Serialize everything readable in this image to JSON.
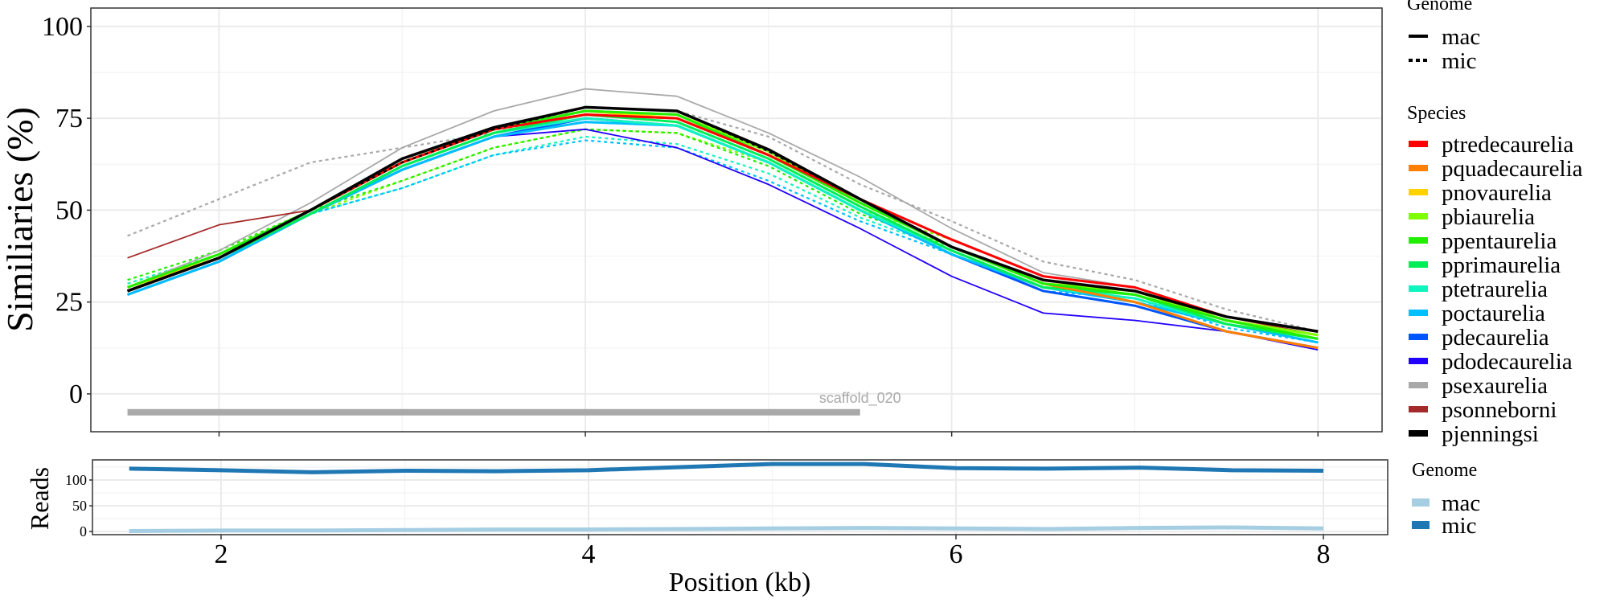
{
  "chart_data": [
    {
      "type": "line",
      "ylabel": "Similiaries (%)",
      "xlabel": "Position (kb)",
      "xlim": [
        1.3,
        8.35
      ],
      "ylim": [
        -10.3,
        105
      ],
      "grid": true,
      "x": [
        1.5,
        2,
        2.5,
        3,
        3.5,
        4,
        4.5,
        5,
        5.5,
        6,
        6.5,
        7,
        7.5,
        8
      ],
      "yticks": [
        0,
        25,
        50,
        75,
        100
      ],
      "xticks": [
        2,
        4,
        6,
        8
      ],
      "annotation": {
        "text": "scaffold_020",
        "x_start": 1.5,
        "x_end": 5.5,
        "y": -5
      },
      "legend_genome": {
        "title": "Genome",
        "entries": [
          "mac",
          "mic"
        ]
      },
      "legend_species": {
        "title": "Species",
        "position": "right"
      },
      "species": [
        {
          "name": "ptredecaurelia",
          "color": "#FF0000"
        },
        {
          "name": "pquadecaurelia",
          "color": "#FF7F00"
        },
        {
          "name": "pnovaurelia",
          "color": "#FFD200"
        },
        {
          "name": "pbiaurelia",
          "color": "#7FFF00"
        },
        {
          "name": "ppentaurelia",
          "color": "#22EE00"
        },
        {
          "name": "pprimaurelia",
          "color": "#00EE55"
        },
        {
          "name": "ptetraurelia",
          "color": "#10F5C0"
        },
        {
          "name": "poctaurelia",
          "color": "#00BFFF"
        },
        {
          "name": "pdecaurelia",
          "color": "#0055FF"
        },
        {
          "name": "pdodecaurelia",
          "color": "#2200FF"
        },
        {
          "name": "psexaurelia",
          "color": "#A9A9A9"
        },
        {
          "name": "psonneborni",
          "color": "#A52A2A"
        },
        {
          "name": "pjenningsi",
          "color": "#000000"
        }
      ],
      "series": [
        {
          "species": "psexaurelia",
          "genome": "mic",
          "values": [
            43,
            53,
            63,
            67,
            71,
            78,
            77,
            70,
            57,
            47,
            36,
            31,
            23,
            17
          ]
        },
        {
          "species": "pbiaurelia",
          "genome": "mic",
          "values": [
            30,
            38,
            49,
            58,
            67,
            72,
            71,
            63,
            50,
            42,
            32,
            29,
            21,
            16
          ]
        },
        {
          "species": "ppentaurelia",
          "genome": "mic",
          "values": [
            31,
            39,
            50,
            58,
            67,
            72,
            71,
            62,
            49,
            40,
            30,
            28,
            20,
            16
          ]
        },
        {
          "species": "ptetraurelia",
          "genome": "mic",
          "values": [
            30,
            38,
            49,
            56,
            65,
            70,
            68,
            60,
            48,
            39,
            29,
            27,
            19,
            15
          ]
        },
        {
          "species": "poctaurelia",
          "genome": "mic",
          "values": [
            29,
            37,
            49,
            56,
            65,
            69,
            67,
            58,
            47,
            38,
            28,
            26,
            18,
            14
          ]
        },
        {
          "species": "psexaurelia",
          "genome": "mac",
          "values": [
            29,
            39,
            52,
            67,
            77,
            83,
            81,
            71,
            59,
            45,
            33,
            29,
            21,
            16
          ]
        },
        {
          "species": "psonneborni",
          "genome": "mac",
          "values": [
            37,
            46,
            50,
            63,
            72,
            77,
            76,
            66,
            53,
            40,
            31,
            28,
            21,
            16
          ]
        },
        {
          "species": "pdodecaurelia",
          "genome": "mac",
          "values": [
            27,
            36,
            49,
            61,
            70,
            72,
            67,
            57,
            45,
            32,
            22,
            20,
            17,
            12
          ]
        },
        {
          "species": "pdecaurelia",
          "genome": "mac",
          "values": [
            27,
            36,
            49,
            61,
            70,
            75,
            73,
            63,
            50,
            38,
            28,
            24,
            17,
            12.5
          ]
        },
        {
          "species": "poctaurelia",
          "genome": "mac",
          "values": [
            27,
            36,
            49,
            61,
            70,
            74,
            73,
            63,
            50,
            38,
            29,
            25,
            19,
            14
          ]
        },
        {
          "species": "ptetraurelia",
          "genome": "mac",
          "values": [
            28,
            37,
            49,
            62,
            71,
            75,
            73,
            63,
            50,
            39,
            29,
            26,
            19,
            15
          ]
        },
        {
          "species": "pprimaurelia",
          "genome": "mac",
          "values": [
            28,
            37,
            49,
            62,
            71,
            76,
            74,
            64,
            51,
            39,
            29,
            27,
            19,
            15
          ]
        },
        {
          "species": "pquadecaurelia",
          "genome": "mac",
          "values": [
            28,
            37,
            50,
            63,
            72,
            76,
            75,
            65,
            52,
            40,
            30,
            25,
            17,
            12.5
          ]
        },
        {
          "species": "pnovaurelia",
          "genome": "mac",
          "values": [
            29,
            37,
            50,
            63,
            72,
            77,
            75,
            65,
            52,
            40,
            30,
            28,
            20,
            16
          ]
        },
        {
          "species": "pbiaurelia",
          "genome": "mac",
          "values": [
            29,
            38,
            50,
            63,
            72,
            77,
            76,
            66,
            52,
            40,
            30,
            28,
            20,
            16
          ]
        },
        {
          "species": "ppentaurelia",
          "genome": "mac",
          "values": [
            29,
            38,
            50,
            63,
            72,
            77,
            76,
            65,
            52,
            40,
            30,
            27,
            20,
            15
          ]
        },
        {
          "species": "ptredecaurelia",
          "genome": "mac",
          "values": [
            28,
            37,
            50,
            63,
            72,
            76,
            75,
            65,
            53,
            42,
            32,
            29,
            21,
            17
          ]
        },
        {
          "species": "pjenningsi",
          "genome": "mic",
          "values": [
            28,
            37,
            50,
            63,
            72,
            78,
            77,
            66,
            53,
            40,
            31,
            28,
            21,
            17
          ]
        },
        {
          "species": "pjenningsi",
          "genome": "mac",
          "values": [
            28,
            37,
            50,
            64,
            72.5,
            78,
            77,
            66.5,
            53,
            40,
            31,
            28,
            21,
            17
          ]
        }
      ]
    },
    {
      "type": "line",
      "ylabel": "Reads",
      "xlabel": "Position (kb)",
      "xlim": [
        1.3,
        8.35
      ],
      "ylim": [
        -6,
        139
      ],
      "yticks": [
        0,
        50,
        100
      ],
      "xticks": [
        2,
        4,
        6,
        8
      ],
      "x": [
        1.5,
        2,
        2.5,
        3,
        3.5,
        4,
        4.5,
        5,
        5.5,
        6,
        6.5,
        7,
        7.5,
        8
      ],
      "legend": {
        "title": "Genome",
        "position": "right"
      },
      "series": [
        {
          "name": "mac",
          "color": "#A6CEE3",
          "values": [
            1,
            2,
            2,
            3,
            4,
            4,
            5,
            6,
            7,
            6,
            5,
            7,
            8,
            6
          ]
        },
        {
          "name": "mic",
          "color": "#1F78B4",
          "values": [
            122,
            119,
            115,
            118,
            117,
            119,
            125,
            131,
            131,
            123,
            122,
            124,
            119,
            118
          ]
        }
      ]
    }
  ]
}
